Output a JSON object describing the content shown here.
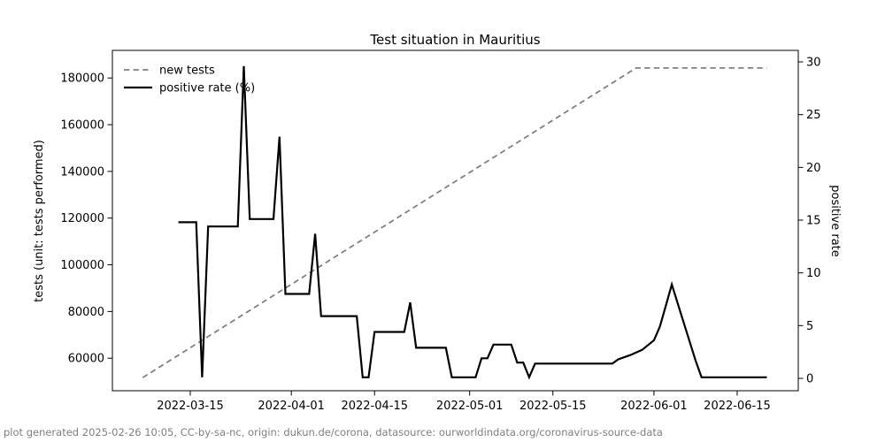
{
  "figure": {
    "background": "#ffffff",
    "footer_text": "plot generated 2025-02-26 10:05, CC-by-sa-nc, origin: dukun.de/corona, datasource: ourworldindata.org/coronavirus-source-data",
    "footer_color": "#7f7f7f"
  },
  "chart_data": {
    "type": "line",
    "title": "Test situation in Mauritius",
    "grid": false,
    "x_axis": {
      "kind": "date",
      "lim": [
        "2022-03-02",
        "2022-06-25"
      ],
      "tick_labels": [
        "2022-03-15",
        "2022-04-01",
        "2022-04-15",
        "2022-05-01",
        "2022-05-15",
        "2022-06-01",
        "2022-06-15"
      ]
    },
    "y_left": {
      "label": "tests (unit: tests performed)",
      "ticks": [
        60000,
        80000,
        100000,
        120000,
        140000,
        160000,
        180000
      ],
      "lim": [
        46000,
        191800
      ]
    },
    "y_right": {
      "label": "positive rate",
      "ticks": [
        0,
        5,
        10,
        15,
        20,
        25,
        30
      ],
      "lim": [
        -1.2,
        31.1
      ]
    },
    "legend": {
      "position": "upper left",
      "entries": [
        {
          "label": "new tests",
          "color": "#808080",
          "style": "dashed"
        },
        {
          "label": "positive rate (%)",
          "color": "#000000",
          "style": "solid"
        }
      ]
    },
    "series": [
      {
        "name": "new tests",
        "axis": "left",
        "color": "#808080",
        "dash": true,
        "width": 1.8,
        "points": [
          [
            "2022-03-07",
            51700
          ],
          [
            "2022-05-29",
            184300
          ],
          [
            "2022-06-20",
            184300
          ]
        ]
      },
      {
        "name": "positive rate (%)",
        "axis": "right",
        "color": "#000000",
        "dash": false,
        "width": 2.2,
        "points": [
          [
            "2022-03-13",
            14.8
          ],
          [
            "2022-03-16",
            14.8
          ],
          [
            "2022-03-17",
            0.1
          ],
          [
            "2022-03-18",
            14.4
          ],
          [
            "2022-03-23",
            14.4
          ],
          [
            "2022-03-24",
            29.6
          ],
          [
            "2022-03-25",
            15.1
          ],
          [
            "2022-03-29",
            15.1
          ],
          [
            "2022-03-30",
            22.9
          ],
          [
            "2022-03-31",
            8.0
          ],
          [
            "2022-04-04",
            8.0
          ],
          [
            "2022-04-05",
            13.7
          ],
          [
            "2022-04-06",
            5.9
          ],
          [
            "2022-04-12",
            5.9
          ],
          [
            "2022-04-13",
            0.1
          ],
          [
            "2022-04-14",
            0.1
          ],
          [
            "2022-04-15",
            4.4
          ],
          [
            "2022-04-20",
            4.4
          ],
          [
            "2022-04-21",
            7.2
          ],
          [
            "2022-04-22",
            2.9
          ],
          [
            "2022-04-27",
            2.9
          ],
          [
            "2022-04-28",
            0.1
          ],
          [
            "2022-05-02",
            0.1
          ],
          [
            "2022-05-03",
            1.9
          ],
          [
            "2022-05-04",
            1.9
          ],
          [
            "2022-05-05",
            3.2
          ],
          [
            "2022-05-08",
            3.2
          ],
          [
            "2022-05-09",
            1.5
          ],
          [
            "2022-05-10",
            1.5
          ],
          [
            "2022-05-11",
            0.1
          ],
          [
            "2022-05-12",
            1.4
          ],
          [
            "2022-05-25",
            1.4
          ],
          [
            "2022-05-26",
            1.8
          ],
          [
            "2022-05-28",
            2.2
          ],
          [
            "2022-05-30",
            2.7
          ],
          [
            "2022-06-01",
            3.6
          ],
          [
            "2022-06-02",
            4.9
          ],
          [
            "2022-06-03",
            6.9
          ],
          [
            "2022-06-04",
            8.9
          ],
          [
            "2022-06-05",
            7.1
          ],
          [
            "2022-06-06",
            5.3
          ],
          [
            "2022-06-07",
            3.5
          ],
          [
            "2022-06-08",
            1.7
          ],
          [
            "2022-06-09",
            0.1
          ],
          [
            "2022-06-20",
            0.1
          ]
        ]
      }
    ]
  }
}
